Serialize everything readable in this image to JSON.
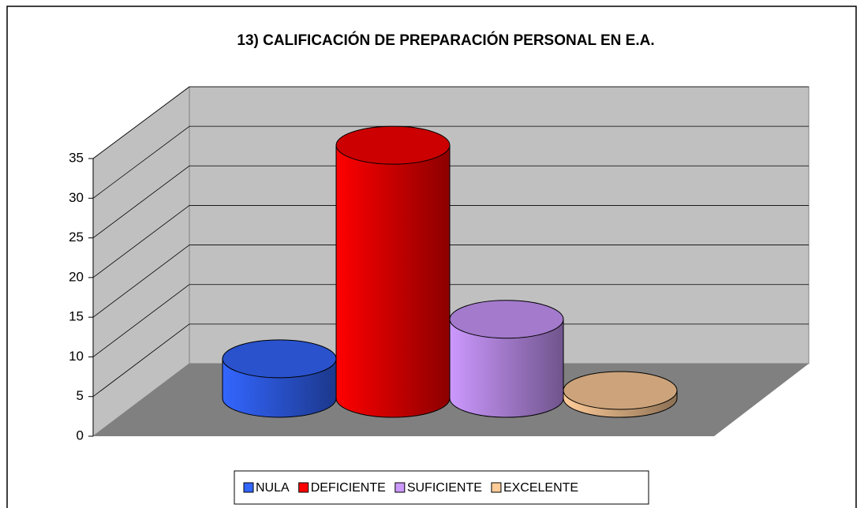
{
  "chart_data": {
    "type": "bar3d",
    "title": "13) CALIFICACIÓN DE PREPARACIÓN PERSONAL EN E.A.",
    "categories": [
      "NULA",
      "DEFICIENTE",
      "SUFICIENTE",
      "EXCELENTE"
    ],
    "values": [
      5,
      32,
      10,
      1
    ],
    "colors": [
      "#3366ff",
      "#ff0000",
      "#cc99ff",
      "#ffcc99"
    ],
    "ylim": [
      0,
      35
    ],
    "yticks": [
      0,
      5,
      10,
      15,
      20,
      25,
      30,
      35
    ],
    "grid": true,
    "legend": "bottom"
  }
}
